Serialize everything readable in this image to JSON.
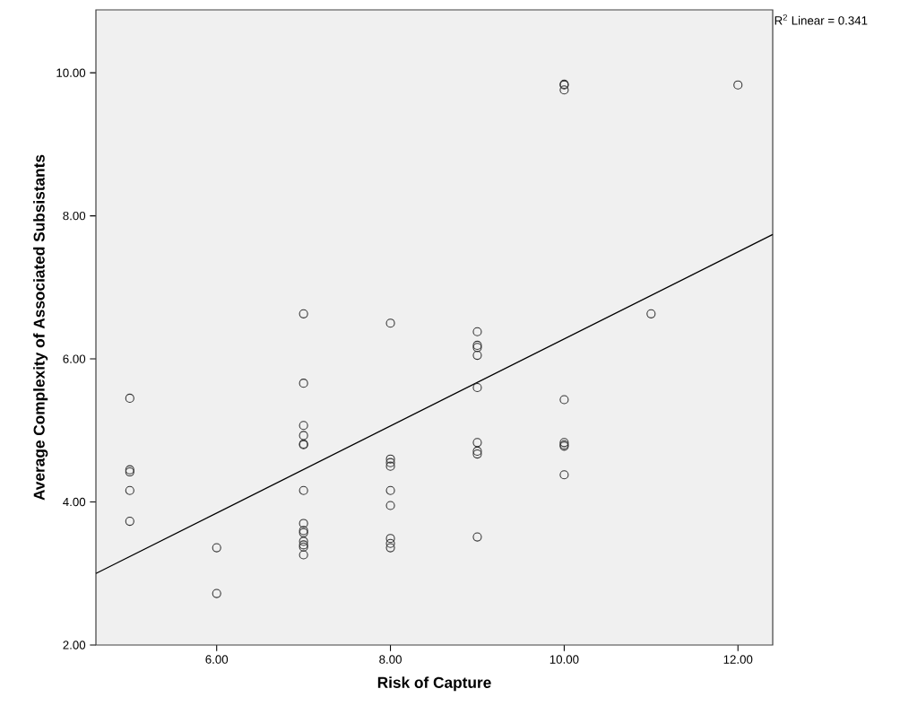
{
  "chart_data": {
    "type": "scatter",
    "xlabel": "Risk of Capture",
    "ylabel": "Average Complexity of Associated Subsistants",
    "xlim": [
      4.61,
      12.4
    ],
    "ylim": [
      2,
      10.88
    ],
    "xticks": [
      {
        "value": 6,
        "label": "6.00"
      },
      {
        "value": 8,
        "label": "8.00"
      },
      {
        "value": 10,
        "label": "10.00"
      },
      {
        "value": 12,
        "label": "12.00"
      }
    ],
    "yticks": [
      {
        "value": 2,
        "label": "2.00"
      },
      {
        "value": 4,
        "label": "4.00"
      },
      {
        "value": 6,
        "label": "6.00"
      },
      {
        "value": 8,
        "label": "8.00"
      },
      {
        "value": 10,
        "label": "10.00"
      }
    ],
    "marker": "circle",
    "annotations": [
      "R$^{2}$ Linear = 0.341"
    ],
    "series": [
      {
        "color": "#333333",
        "x": [
          5,
          5,
          5,
          5,
          5,
          6,
          6,
          7,
          7,
          7,
          7,
          7,
          7,
          7,
          7,
          7,
          7,
          7,
          7,
          7,
          7,
          8,
          8,
          8,
          8,
          8,
          8,
          8,
          8,
          8,
          9,
          9,
          9,
          9,
          9,
          9,
          9,
          9,
          9,
          10,
          10,
          10,
          10,
          10,
          10,
          10,
          10,
          11,
          12
        ],
        "values": [
          5.45,
          4.45,
          4.42,
          4.16,
          3.73,
          3.36,
          2.72,
          6.63,
          5.66,
          5.07,
          4.93,
          4.81,
          4.8,
          4.16,
          3.7,
          3.6,
          3.57,
          3.45,
          3.4,
          3.37,
          3.26,
          6.5,
          4.6,
          4.55,
          4.5,
          4.16,
          3.95,
          3.49,
          3.42,
          3.36,
          6.38,
          6.19,
          6.16,
          6.05,
          5.6,
          4.83,
          4.71,
          4.67,
          3.51,
          9.84,
          9.83,
          9.76,
          5.43,
          4.83,
          4.8,
          4.78,
          4.38,
          6.63,
          9.83
        ]
      },
      {
        "type": "line",
        "marker": "none",
        "color": "#000000",
        "x": [
          4.61,
          12.4
        ],
        "values": [
          3.0,
          7.74
        ]
      }
    ]
  }
}
